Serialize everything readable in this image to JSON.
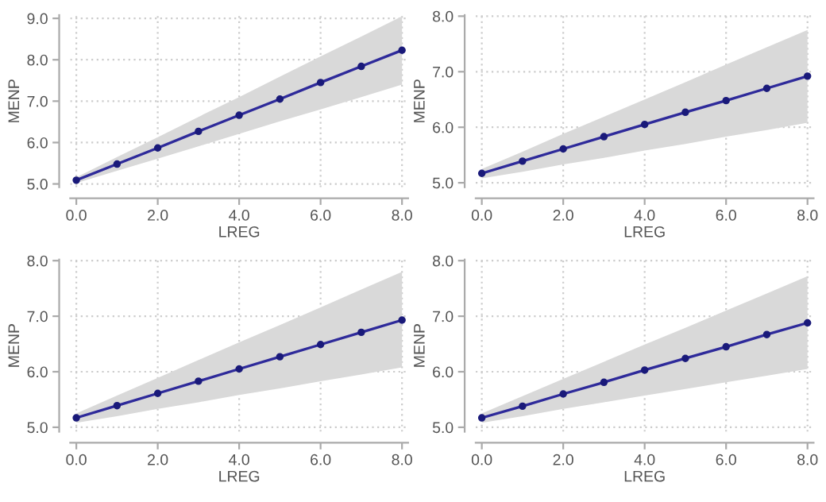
{
  "chart_data": [
    {
      "type": "line",
      "xlabel": "LREG",
      "ylabel": "MENP",
      "x": [
        0,
        1,
        2,
        3,
        4,
        5,
        6,
        7,
        8
      ],
      "xlim": [
        -0.15,
        8.15
      ],
      "ylim": [
        4.92,
        9.08
      ],
      "xticks": [
        {
          "value": 0,
          "label": "0.0"
        },
        {
          "value": 2,
          "label": "2.0"
        },
        {
          "value": 4,
          "label": "4.0"
        },
        {
          "value": 6,
          "label": "6.0"
        },
        {
          "value": 8,
          "label": "8.0"
        }
      ],
      "yticks": [
        {
          "value": 5,
          "label": "5.0"
        },
        {
          "value": 6,
          "label": "6.0"
        },
        {
          "value": 7,
          "label": "7.0"
        },
        {
          "value": 8,
          "label": "8.0"
        },
        {
          "value": 9,
          "label": "9.0"
        }
      ],
      "grid": true,
      "marker": "circle",
      "line_style": "solid",
      "series": [
        {
          "color": "#2e2a9a",
          "values": [
            5.09,
            5.48,
            5.87,
            6.27,
            6.66,
            7.05,
            7.45,
            7.84,
            8.23
          ],
          "lower": [
            5.02,
            5.32,
            5.61,
            5.91,
            6.21,
            6.51,
            6.8,
            7.1,
            7.4
          ],
          "upper": [
            5.16,
            5.65,
            6.13,
            6.62,
            7.1,
            7.59,
            8.08,
            8.56,
            9.05
          ]
        }
      ]
    },
    {
      "type": "line",
      "xlabel": "LREG",
      "ylabel": "MENP",
      "x": [
        0,
        1,
        2,
        3,
        4,
        5,
        6,
        7,
        8
      ],
      "xlim": [
        -0.15,
        8.15
      ],
      "ylim": [
        4.92,
        8.02
      ],
      "xticks": [
        {
          "value": 0,
          "label": "0.0"
        },
        {
          "value": 2,
          "label": "2.0"
        },
        {
          "value": 4,
          "label": "4.0"
        },
        {
          "value": 6,
          "label": "6.0"
        },
        {
          "value": 8,
          "label": "8.0"
        }
      ],
      "yticks": [
        {
          "value": 5,
          "label": "5.0"
        },
        {
          "value": 6,
          "label": "6.0"
        },
        {
          "value": 7,
          "label": "7.0"
        },
        {
          "value": 8,
          "label": "8.0"
        }
      ],
      "grid": true,
      "marker": "circle",
      "line_style": "solid",
      "series": [
        {
          "color": "#2e2a9a",
          "values": [
            5.17,
            5.39,
            5.61,
            5.83,
            6.05,
            6.27,
            6.48,
            6.7,
            6.92
          ],
          "lower": [
            5.08,
            5.2,
            5.33,
            5.45,
            5.58,
            5.7,
            5.83,
            5.95,
            6.08
          ],
          "upper": [
            5.25,
            5.56,
            5.88,
            6.19,
            6.5,
            6.81,
            7.13,
            7.44,
            7.75
          ]
        }
      ]
    },
    {
      "type": "line",
      "xlabel": "LREG",
      "ylabel": "MENP",
      "x": [
        0,
        1,
        2,
        3,
        4,
        5,
        6,
        7,
        8
      ],
      "xlim": [
        -0.15,
        8.15
      ],
      "ylim": [
        4.92,
        8.02
      ],
      "xticks": [
        {
          "value": 0,
          "label": "0.0"
        },
        {
          "value": 2,
          "label": "2.0"
        },
        {
          "value": 4,
          "label": "4.0"
        },
        {
          "value": 6,
          "label": "6.0"
        },
        {
          "value": 8,
          "label": "8.0"
        }
      ],
      "yticks": [
        {
          "value": 5,
          "label": "5.0"
        },
        {
          "value": 6,
          "label": "6.0"
        },
        {
          "value": 7,
          "label": "7.0"
        },
        {
          "value": 8,
          "label": "8.0"
        }
      ],
      "grid": true,
      "marker": "circle",
      "line_style": "solid",
      "series": [
        {
          "color": "#2e2a9a",
          "values": [
            5.17,
            5.39,
            5.61,
            5.83,
            6.05,
            6.27,
            6.49,
            6.71,
            6.93
          ],
          "lower": [
            5.08,
            5.2,
            5.33,
            5.45,
            5.58,
            5.7,
            5.83,
            5.95,
            6.08
          ],
          "upper": [
            5.25,
            5.57,
            5.89,
            6.21,
            6.53,
            6.84,
            7.16,
            7.48,
            7.8
          ]
        }
      ]
    },
    {
      "type": "line",
      "xlabel": "LREG",
      "ylabel": "MENP",
      "x": [
        0,
        1,
        2,
        3,
        4,
        5,
        6,
        7,
        8
      ],
      "xlim": [
        -0.15,
        8.15
      ],
      "ylim": [
        4.92,
        8.02
      ],
      "xticks": [
        {
          "value": 0,
          "label": "0.0"
        },
        {
          "value": 2,
          "label": "2.0"
        },
        {
          "value": 4,
          "label": "4.0"
        },
        {
          "value": 6,
          "label": "6.0"
        },
        {
          "value": 8,
          "label": "8.0"
        }
      ],
      "yticks": [
        {
          "value": 5,
          "label": "5.0"
        },
        {
          "value": 6,
          "label": "6.0"
        },
        {
          "value": 7,
          "label": "7.0"
        },
        {
          "value": 8,
          "label": "8.0"
        }
      ],
      "grid": true,
      "marker": "circle",
      "line_style": "solid",
      "series": [
        {
          "color": "#2e2a9a",
          "values": [
            5.17,
            5.38,
            5.6,
            5.81,
            6.03,
            6.24,
            6.45,
            6.67,
            6.88
          ],
          "lower": [
            5.08,
            5.2,
            5.33,
            5.45,
            5.57,
            5.69,
            5.81,
            5.93,
            6.05
          ],
          "upper": [
            5.25,
            5.56,
            5.87,
            6.18,
            6.49,
            6.79,
            7.1,
            7.41,
            7.72
          ]
        }
      ]
    }
  ]
}
